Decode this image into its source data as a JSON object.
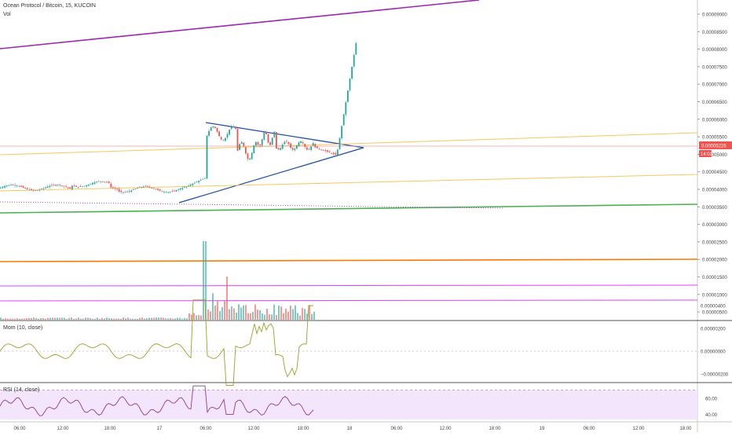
{
  "header": {
    "symbol_line": "Ocean Protocol / Bitcoin, 15, KUCOIN",
    "volume_label": "Vol"
  },
  "chart_data": [
    {
      "type": "candlestick",
      "name": "price",
      "title": "Ocean Protocol / Bitcoin, 15, KUCOIN",
      "ylim": [
        3.8e-06,
        9.4e-06
      ],
      "price_ticks": [
        "0.00009000",
        "0.00008500",
        "0.00008000",
        "0.00007500",
        "0.00007000",
        "0.00006500",
        "0.00006000",
        "0.00005500",
        "0.00005000",
        "0.00004500",
        "0.00004000",
        "0.00003500",
        "0.00003000",
        "0.00002500",
        "0.00002000",
        "0.00001500",
        "0.00001000",
        "0.00000500"
      ],
      "price_tick_values": [
        9.0,
        8.5,
        8.0,
        7.5,
        7.0,
        6.5,
        6.0,
        5.5,
        5.0,
        4.5,
        4.0,
        3.5,
        3.0,
        2.5,
        2.0,
        1.5,
        1.0,
        0.5
      ],
      "current_price_label": "0.00005226",
      "countdown_label": "14:01",
      "time_ticks": [
        "06:00",
        "12:00",
        "18:00",
        "17",
        "06:00",
        "12:00",
        "18:00",
        "18",
        "06:00",
        "12:00",
        "18:00",
        "19",
        "06:00",
        "12:00",
        "18:00"
      ],
      "colors": {
        "up": "#26a69a",
        "down": "#ef5350",
        "price_tag": "#ef5350"
      },
      "trendlines": [
        {
          "name": "purple-channel-line",
          "color": "#9c27b0"
        },
        {
          "name": "triangle-upper-line",
          "color": "#1e4fa8"
        },
        {
          "name": "triangle-lower-line",
          "color": "#1e4fa8"
        },
        {
          "name": "yellow-upper-line",
          "color": "#f7c75d"
        },
        {
          "name": "yellow-lower-line",
          "color": "#f7c75d"
        },
        {
          "name": "green-support-line",
          "color": "#4caf50"
        },
        {
          "name": "orange-line",
          "color": "#f57c00"
        },
        {
          "name": "magenta-line-1",
          "color": "#e040fb"
        },
        {
          "name": "magenta-line-2",
          "color": "#e040fb"
        }
      ]
    },
    {
      "type": "bar",
      "name": "volume",
      "title": "Vol",
      "note": "volume histogram overlaid at bottom of price pane"
    },
    {
      "type": "line",
      "name": "momentum",
      "title": "Mom (10, close)",
      "ticks": [
        "0.00000400",
        "0.00000200",
        "0.00000000",
        "−0.00000200"
      ],
      "tick_values": [
        4,
        2,
        0,
        -2
      ],
      "ylim": [
        -3.5,
        5
      ],
      "color": "#9aa12a"
    },
    {
      "type": "line",
      "name": "rsi",
      "title": "RSI (14, close)",
      "ticks": [
        "60.00",
        "40.00"
      ],
      "tick_values": [
        60,
        40
      ],
      "ylim": [
        30,
        80
      ],
      "band": [
        30,
        70
      ],
      "color": "#8e3c8e",
      "band_color": "#f3e5fb"
    }
  ]
}
